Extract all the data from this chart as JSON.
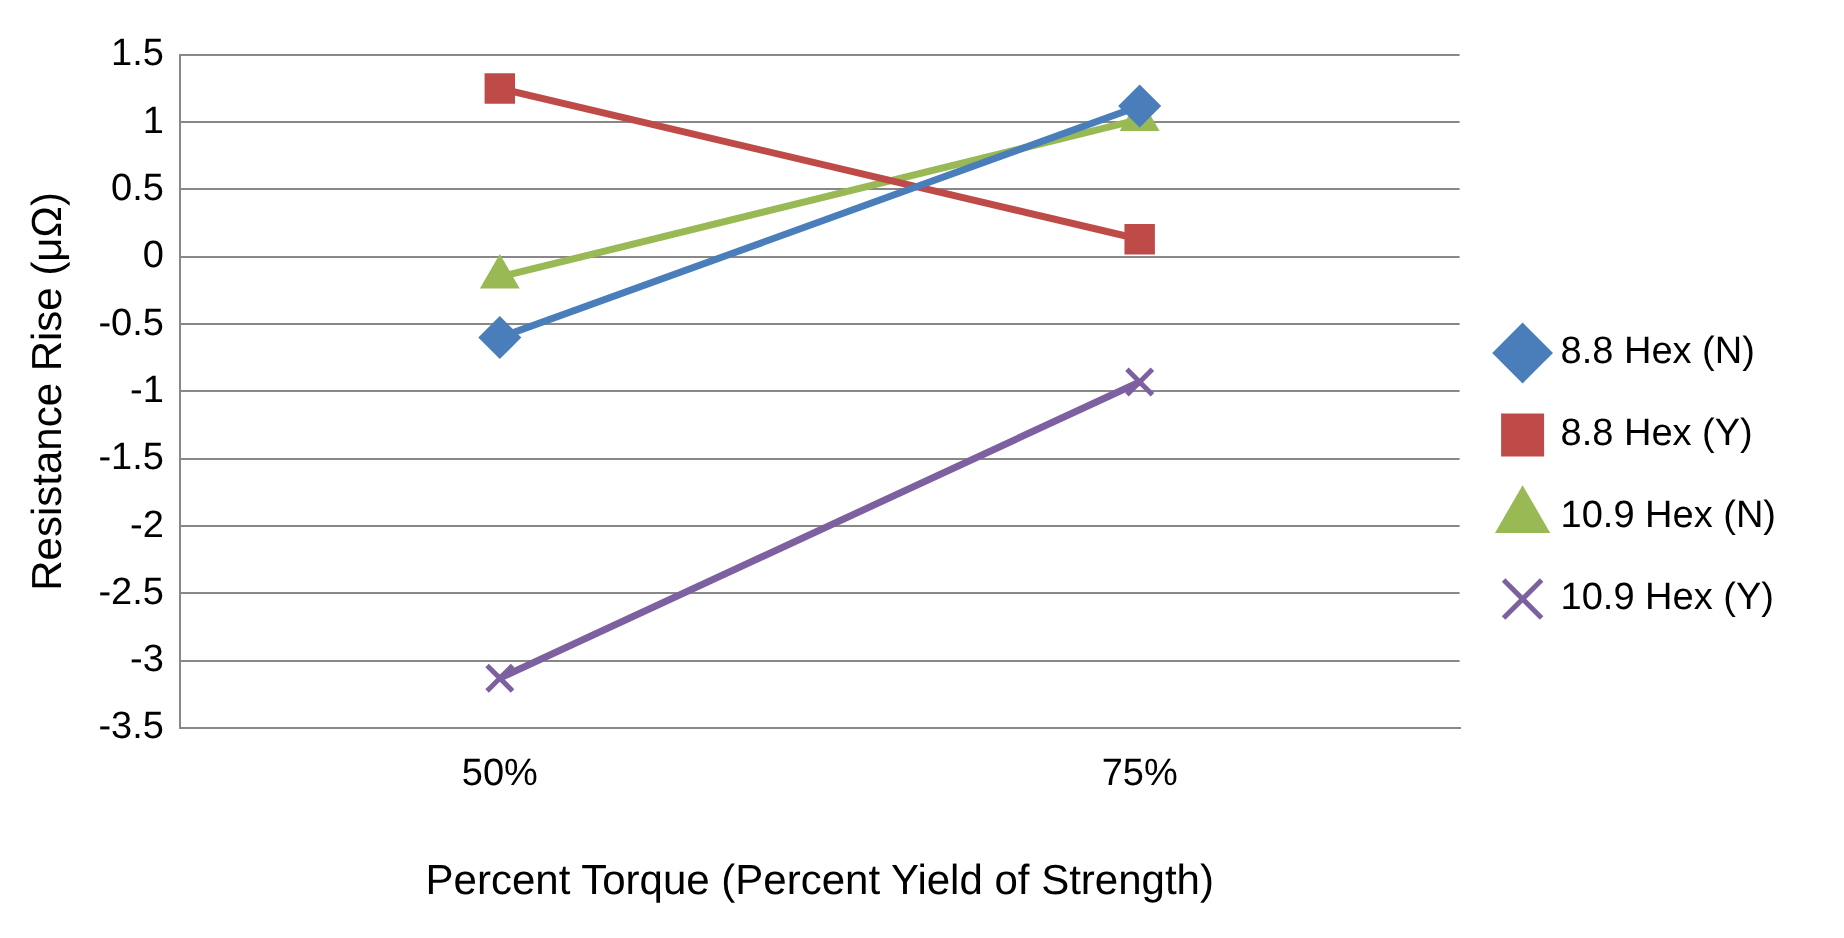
{
  "chart_data": {
    "type": "line",
    "xlabel": "Percent Torque (Percent Yield of Strength)",
    "ylabel": "Resistance Rise (μΩ)",
    "categories": [
      "50%",
      "75%"
    ],
    "series": [
      {
        "name": "8.8 Hex (N)",
        "color": "#4a7ebb",
        "marker": "diamond",
        "values": [
          -0.6,
          1.12
        ]
      },
      {
        "name": "8.8 Hex (Y)",
        "color": "#be4b48",
        "marker": "square",
        "values": [
          1.25,
          0.13
        ]
      },
      {
        "name": "10.9 Hex (N)",
        "color": "#98b954",
        "marker": "triangle",
        "values": [
          -0.15,
          1.02
        ]
      },
      {
        "name": "10.9 Hex (Y)",
        "color": "#7d60a0",
        "marker": "cross",
        "values": [
          -3.13,
          -0.93
        ]
      }
    ],
    "ylim": [
      -3.5,
      1.5
    ],
    "yticks": [
      -3.5,
      -3,
      -2.5,
      -2,
      -1.5,
      -1,
      -0.5,
      0,
      0.5,
      1,
      1.5
    ],
    "grid": "y",
    "legend": "right"
  }
}
